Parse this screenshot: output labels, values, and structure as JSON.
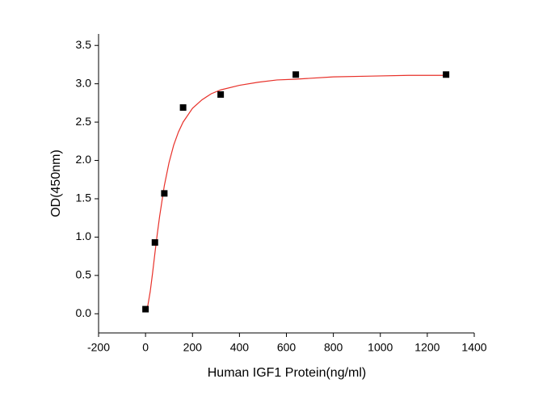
{
  "chart_data": {
    "type": "scatter",
    "x_label": "Human IGF1 Protein(ng/ml)",
    "y_label": "OD(450nm)",
    "x": [
      0,
      40,
      80,
      160,
      320,
      640,
      1280
    ],
    "values": [
      0.06,
      0.93,
      1.57,
      2.69,
      2.86,
      3.12,
      3.12
    ],
    "color": "#000000",
    "fit": {
      "color": "#e8312a",
      "x": [
        0,
        10,
        20,
        30,
        40,
        50,
        60,
        80,
        100,
        120,
        140,
        160,
        200,
        240,
        280,
        320,
        400,
        480,
        560,
        640,
        800,
        960,
        1120,
        1280
      ],
      "values": [
        0.03,
        0.11,
        0.29,
        0.53,
        0.79,
        1.04,
        1.27,
        1.67,
        1.97,
        2.2,
        2.37,
        2.5,
        2.68,
        2.79,
        2.87,
        2.92,
        2.98,
        3.02,
        3.05,
        3.06,
        3.09,
        3.1,
        3.11,
        3.11
      ]
    },
    "xlim": [
      -200,
      1400
    ],
    "xticks": [
      -200,
      0,
      200,
      400,
      600,
      800,
      1000,
      1200,
      1400
    ],
    "ylim": [
      -0.25,
      3.65
    ],
    "yticks": [
      {
        "value": 0,
        "label": "0.0"
      },
      0.5,
      {
        "value": 1,
        "label": "1.0"
      },
      1.5,
      {
        "value": 2,
        "label": "2.0"
      },
      2.5,
      {
        "value": 3,
        "label": "3.0"
      },
      3.5
    ]
  }
}
